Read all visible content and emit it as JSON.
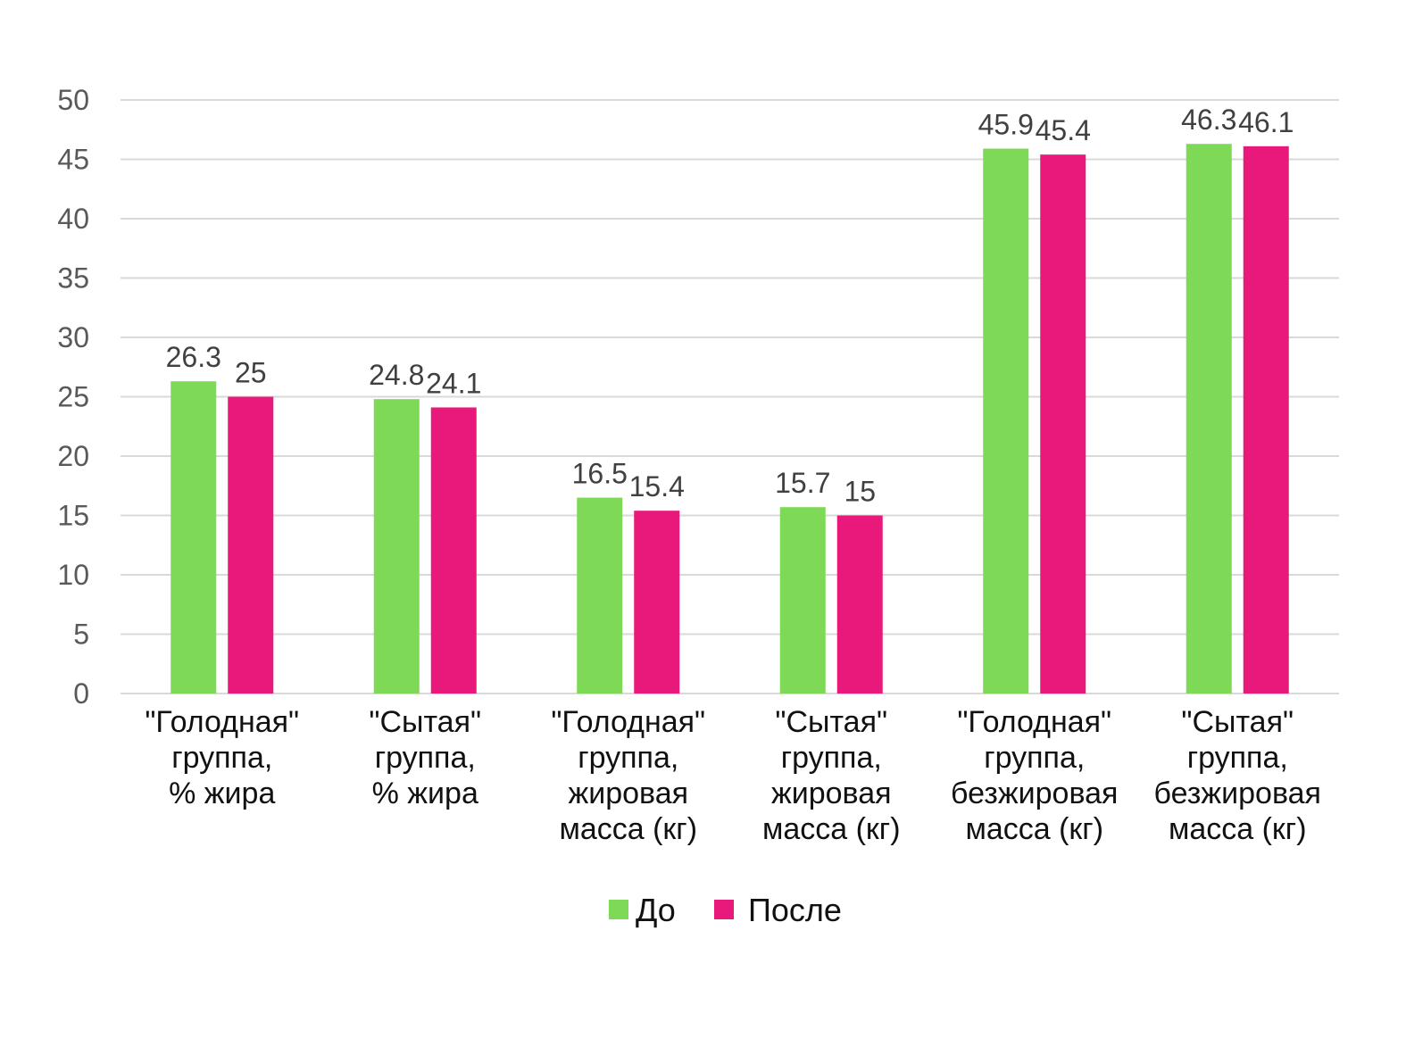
{
  "chart_data": {
    "type": "bar",
    "title": "",
    "xlabel": "",
    "ylabel": "",
    "ylim": [
      0,
      50
    ],
    "yticks": [
      "0",
      "5",
      "10",
      "15",
      "20",
      "25",
      "30",
      "35",
      "40",
      "45",
      "50"
    ],
    "grid": true,
    "legend_position": "bottom",
    "categories": [
      [
        "\"Голодная\"",
        "группа,",
        "% жира"
      ],
      [
        "\"Сытая\"",
        "группа,",
        "% жира"
      ],
      [
        "\"Голодная\"",
        "группа,",
        "жировая",
        "масса (кг)"
      ],
      [
        "\"Сытая\"",
        "группа,",
        "жировая",
        "масса (кг)"
      ],
      [
        "\"Голодная\"",
        "группа,",
        "безжировая",
        "масса (кг)"
      ],
      [
        "\"Сытая\"",
        "группа,",
        "безжировая",
        "масса (кг)"
      ]
    ],
    "series": [
      {
        "name": "До",
        "color": "#7ed957",
        "values": [
          26.3,
          24.8,
          16.5,
          15.7,
          45.9,
          46.3
        ],
        "labels": [
          "26.3",
          "24.8",
          "16.5",
          "15.7",
          "45.9",
          "46.3"
        ]
      },
      {
        "name": "После",
        "color": "#e8197a",
        "values": [
          25,
          24.1,
          15.4,
          15,
          45.4,
          46.1
        ],
        "labels": [
          "25",
          "24.1",
          "15.4",
          "15",
          "45.4",
          "46.1"
        ]
      }
    ]
  }
}
